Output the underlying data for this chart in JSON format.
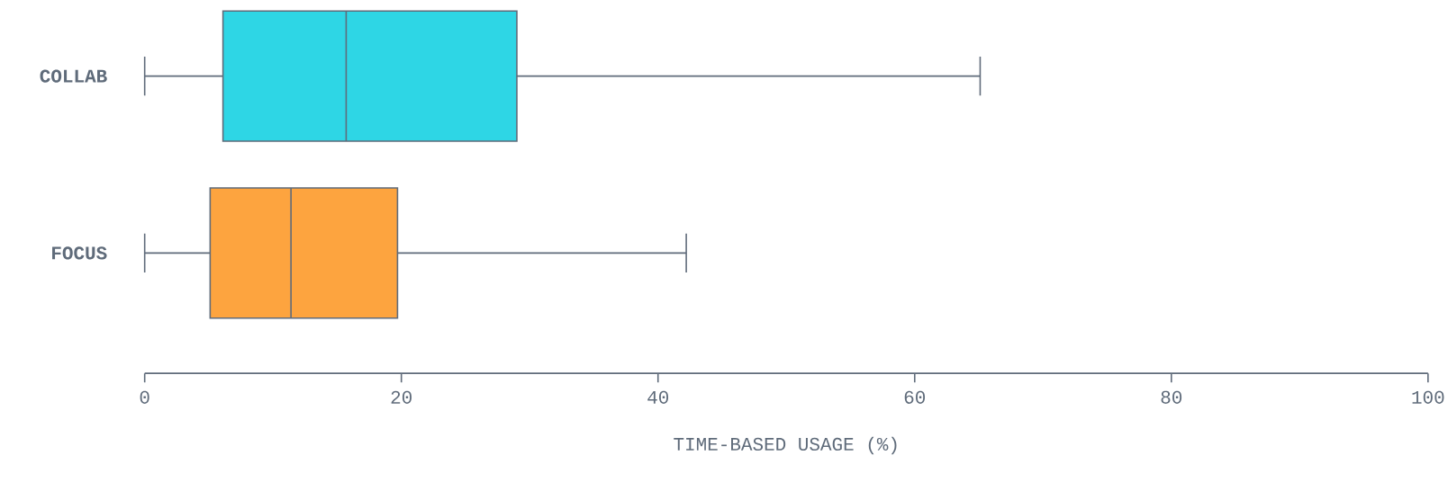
{
  "chart_data": {
    "type": "box",
    "orientation": "horizontal",
    "categories": [
      "COLLAB",
      "FOCUS"
    ],
    "boxes": [
      {
        "low": 0,
        "q1": 6.1,
        "median": 15.7,
        "q3": 29.0,
        "high": 65.1
      },
      {
        "low": 0,
        "q1": 5.1,
        "median": 11.4,
        "q3": 19.7,
        "high": 42.2
      }
    ],
    "colors": [
      "#2ed6e5",
      "#fda43f"
    ],
    "xlabel": "TIME-BASED USAGE (%)",
    "xlim": [
      0,
      100
    ],
    "xticks": [
      0,
      20,
      40,
      60,
      80,
      100
    ],
    "grid": false
  }
}
